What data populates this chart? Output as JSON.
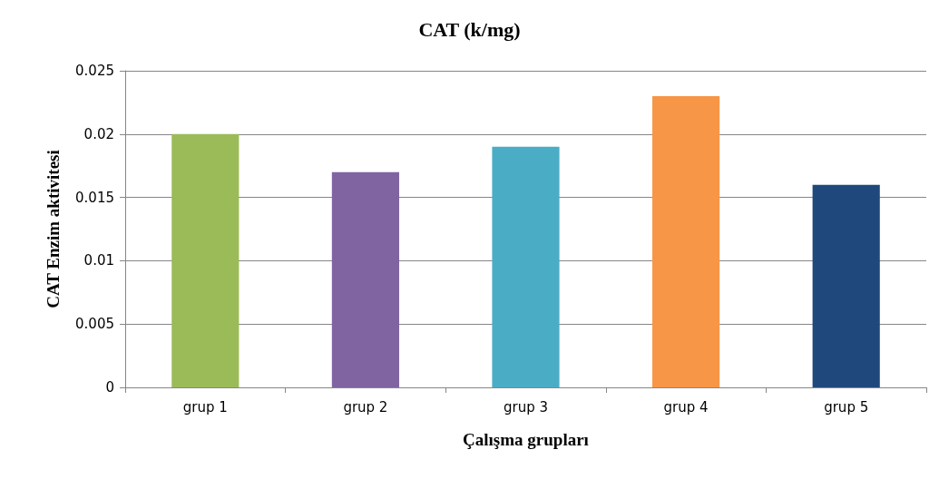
{
  "chart_data": {
    "type": "bar",
    "title": "CAT (k/mg)",
    "xlabel": "Çalışma grupları",
    "ylabel": "CAT Enzim aktivitesi",
    "categories": [
      "grup 1",
      "grup 2",
      "grup 3",
      "grup 4",
      "grup 5"
    ],
    "values": [
      0.02,
      0.017,
      0.019,
      0.023,
      0.016
    ],
    "colors": [
      "#9bbb59",
      "#8064a2",
      "#4bacc6",
      "#f79646",
      "#1f497d"
    ],
    "ylim": [
      0,
      0.025
    ],
    "yticks": [
      0,
      0.005,
      0.01,
      0.015,
      0.02,
      0.025
    ],
    "grid": "y"
  }
}
